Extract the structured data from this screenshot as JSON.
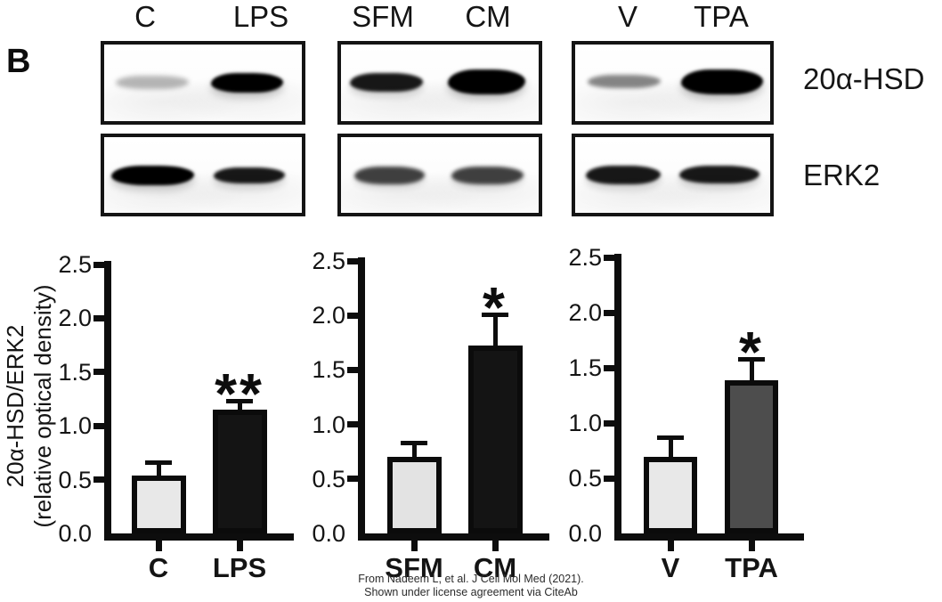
{
  "panel_label": "B",
  "blots": {
    "row_labels": [
      "20α-HSD",
      "ERK2"
    ],
    "groups": [
      {
        "lanes": [
          "C",
          "LPS"
        ],
        "bands": {
          "target": [
            "faint",
            "dense"
          ],
          "loading": [
            "dense",
            "strong"
          ]
        }
      },
      {
        "lanes": [
          "SFM",
          "CM"
        ],
        "bands": {
          "target": [
            "strong",
            "dense"
          ],
          "loading": [
            "medium",
            "medium"
          ]
        }
      },
      {
        "lanes": [
          "V",
          "TPA"
        ],
        "bands": {
          "target": [
            "light",
            "dense"
          ],
          "loading": [
            "strong",
            "strong"
          ]
        }
      }
    ]
  },
  "chart_data": [
    {
      "type": "bar",
      "categories": [
        "C",
        "LPS"
      ],
      "values": [
        0.54,
        1.15
      ],
      "errors": [
        0.12,
        0.08
      ],
      "significance": [
        "",
        "**"
      ],
      "bar_colors": [
        "#e8e8e8",
        "#141414"
      ],
      "title": "",
      "xlabel": "",
      "ylabel": "20α-HSD/ERK2 (relative optical density)",
      "ylabel_line1": "20α-HSD/ERK2",
      "ylabel_line2": "(relative optical density)",
      "ylim": [
        0,
        2.5
      ],
      "yticks": [
        "0.0",
        "0.5",
        "1.0",
        "1.5",
        "2.0",
        "2.5"
      ],
      "grid": false,
      "legend": "none"
    },
    {
      "type": "bar",
      "categories": [
        "SFM",
        "CM"
      ],
      "values": [
        0.7,
        1.72
      ],
      "errors": [
        0.13,
        0.29
      ],
      "significance": [
        "",
        "*"
      ],
      "bar_colors": [
        "#e3e3e3",
        "#141414"
      ],
      "title": "",
      "xlabel": "",
      "ylabel": "20α-HSD/ERK2 (relative optical density)",
      "ylim": [
        0,
        2.5
      ],
      "yticks": [
        "0.0",
        "0.5",
        "1.0",
        "1.5",
        "2.0",
        "2.5"
      ],
      "grid": false,
      "legend": "none"
    },
    {
      "type": "bar",
      "categories": [
        "V",
        "TPA"
      ],
      "values": [
        0.69,
        1.39
      ],
      "errors": [
        0.18,
        0.19
      ],
      "significance": [
        "",
        "*"
      ],
      "bar_colors": [
        "#e8e8e8",
        "#4d4d4d"
      ],
      "title": "",
      "xlabel": "",
      "ylabel": "20α-HSD/ERK2 (relative optical density)",
      "ylim": [
        0,
        2.5
      ],
      "yticks": [
        "0.0",
        "0.5",
        "1.0",
        "1.5",
        "2.0",
        "2.5"
      ],
      "grid": false,
      "legend": "none"
    }
  ],
  "caption": {
    "line1": "From Nadeem L, et al. J Cell Mol Med (2021).",
    "line2": "Shown under license agreement via CiteAb"
  }
}
